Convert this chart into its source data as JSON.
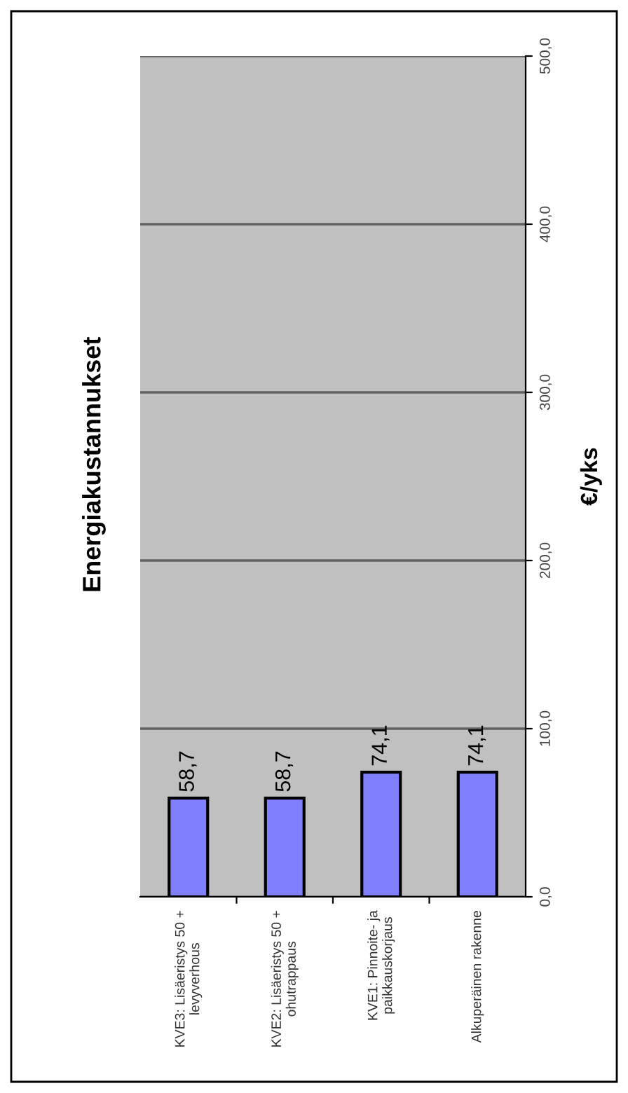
{
  "chart_data": {
    "type": "bar",
    "title": "Energiakustannukset",
    "ylabel": "€/yks",
    "categories": [
      "KVE3: Lisäeristys 50 +\nlevyverhous",
      "KVE2: Lisäeristys 50 +\nohutrappaus",
      "KVE1: Pinnoite- ja\npaikkauskorjaus",
      "Alkuperäinen rakenne"
    ],
    "values": [
      58.7,
      58.7,
      74.1,
      74.1
    ],
    "value_labels": [
      "58,7",
      "58,7",
      "74,1",
      "74,1"
    ],
    "color": "#8080ff",
    "ylim": [
      0,
      500
    ],
    "yticks": [
      {
        "value": 0,
        "label": "0,0"
      },
      {
        "value": 100,
        "label": "100,0"
      },
      {
        "value": 200,
        "label": "200,0"
      },
      {
        "value": 300,
        "label": "300,0"
      },
      {
        "value": 400,
        "label": "400,0"
      },
      {
        "value": 500,
        "label": "500,0"
      }
    ],
    "grid": "y",
    "legend": false
  }
}
